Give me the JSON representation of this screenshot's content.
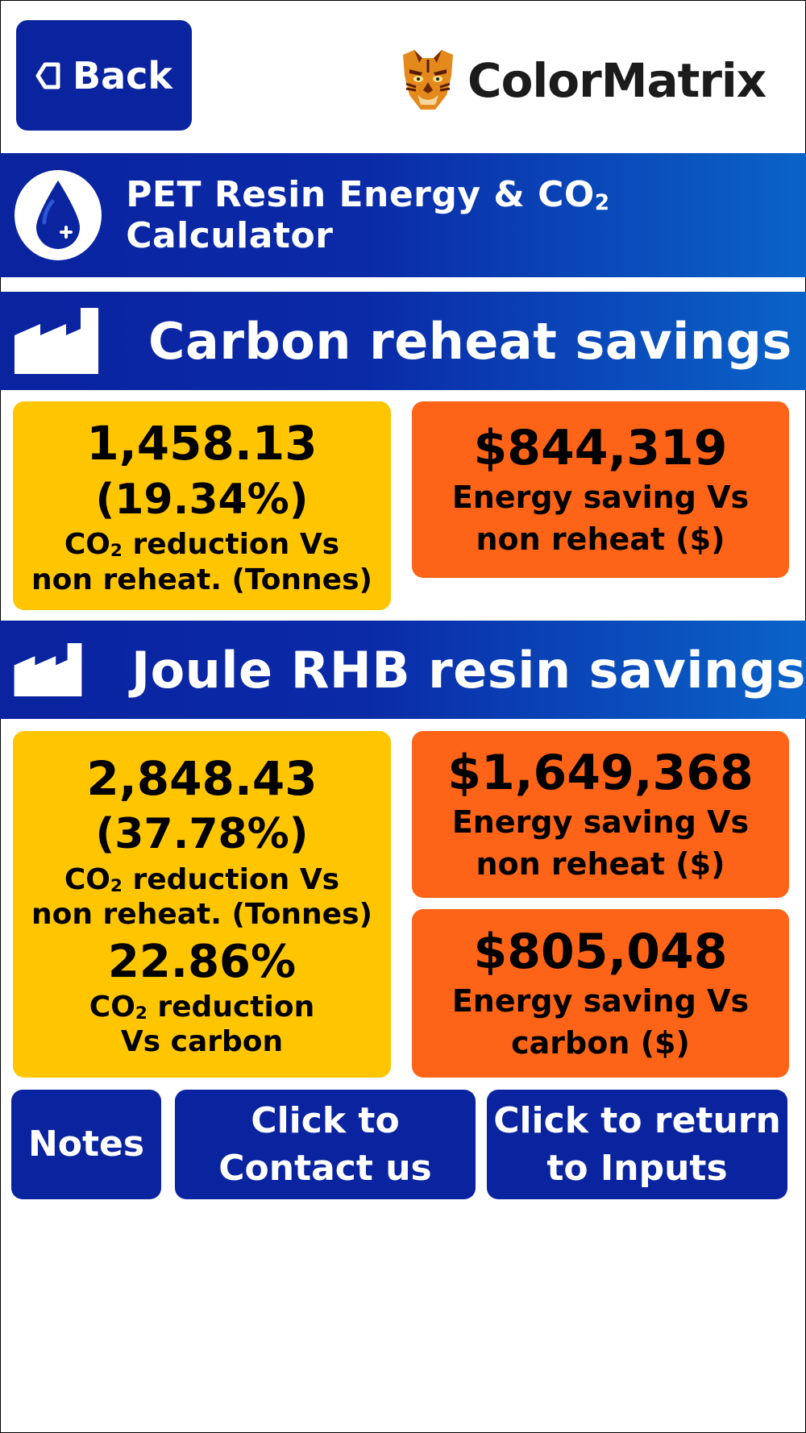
{
  "header": {
    "back_label": "Back",
    "brand": "ColorMatrix"
  },
  "app": {
    "title_prefix": "PET Resin Energy & CO",
    "title_sub": "2",
    "title_suffix": " Calculator"
  },
  "carbon": {
    "title": "Carbon reheat savings",
    "co2_value": "1,458.13",
    "co2_percent": "(19.34%)",
    "co2_label_prefix": "CO",
    "co2_label_sub": "2",
    "co2_label_rest": " reduction Vs",
    "co2_label_line2": "non reheat. (Tonnes)",
    "energy_value": "$844,319",
    "energy_line1": "Energy saving Vs",
    "energy_line2": "non reheat ($)"
  },
  "joule": {
    "title": "Joule RHB resin savings",
    "co2_value": "2,848.43",
    "co2_percent": "(37.78%)",
    "co2_label_prefix": "CO",
    "co2_label_sub": "2",
    "co2_label_rest": " reduction Vs",
    "co2_label_line2": "non reheat. (Tonnes)",
    "co2_carbon_percent": "22.86%",
    "co2_carbon_prefix": "CO",
    "co2_carbon_sub": "2",
    "co2_carbon_rest": " reduction",
    "co2_carbon_line2": "Vs carbon",
    "energy_value": "$1,649,368",
    "energy_line1": "Energy saving Vs",
    "energy_line2": "non reheat ($)",
    "energy_carbon_value": "$805,048",
    "energy_carbon_line1": "Energy saving Vs",
    "energy_carbon_line2": "carbon ($)"
  },
  "buttons": {
    "notes": "Notes",
    "contact_line1": "Click to",
    "contact_line2": "Contact us",
    "return_line1": "Click to return",
    "return_line2": "to Inputs"
  },
  "colors": {
    "primary_blue": "#0a239f",
    "yellow_card": "#ffc600",
    "orange_card": "#fd6418"
  }
}
